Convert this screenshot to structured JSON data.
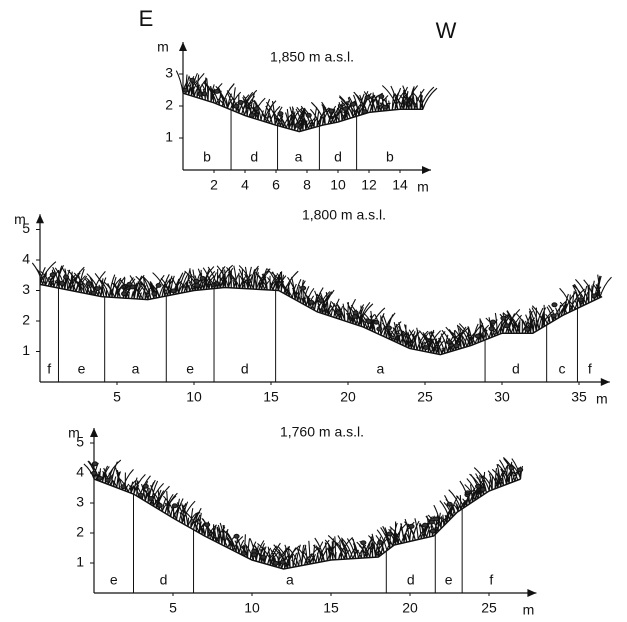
{
  "left_label": "E",
  "right_label": "W",
  "panels": [
    {
      "title": "1,850 m a.s.l.",
      "y_label": "m",
      "x_label": "m",
      "xlim": [
        0,
        16
      ],
      "ylim": [
        0,
        4
      ],
      "xticks": [
        2,
        4,
        6,
        8,
        10,
        12,
        14
      ],
      "yticks": [
        1,
        2,
        3
      ],
      "zones": [
        {
          "label": "b",
          "start": 0,
          "end": 3.1
        },
        {
          "label": "d",
          "start": 3.1,
          "end": 6.1
        },
        {
          "label": "a",
          "start": 6.1,
          "end": 8.8
        },
        {
          "label": "d",
          "start": 8.8,
          "end": 11.2
        },
        {
          "label": "b",
          "start": 11.2,
          "end": 15.5
        }
      ],
      "ground_x": [
        0,
        2,
        4,
        6,
        7.5,
        9,
        10,
        12,
        14,
        15.5
      ],
      "ground_y": [
        2.4,
        2.1,
        1.7,
        1.4,
        1.2,
        1.4,
        1.5,
        1.8,
        1.9,
        1.9
      ]
    },
    {
      "title": "1,800 m a.s.l.",
      "y_label": "m",
      "x_label": "m",
      "xlim": [
        0,
        37
      ],
      "ylim": [
        0,
        5.5
      ],
      "xticks": [
        5,
        10,
        15,
        20,
        25,
        30,
        35
      ],
      "yticks": [
        1,
        2,
        3,
        4,
        5
      ],
      "zones": [
        {
          "label": "f",
          "start": 0,
          "end": 1.2
        },
        {
          "label": "e",
          "start": 1.2,
          "end": 4.2
        },
        {
          "label": "a",
          "start": 4.2,
          "end": 8.2
        },
        {
          "label": "e",
          "start": 8.2,
          "end": 11.3
        },
        {
          "label": "d",
          "start": 11.3,
          "end": 15.3
        },
        {
          "label": "a",
          "start": 15.3,
          "end": 28.9
        },
        {
          "label": "d",
          "start": 28.9,
          "end": 32.9
        },
        {
          "label": "c",
          "start": 32.9,
          "end": 34.9
        },
        {
          "label": "f",
          "start": 34.9,
          "end": 36.5
        }
      ],
      "ground_x": [
        0,
        4,
        7,
        10,
        12,
        15.5,
        18,
        21,
        24,
        26,
        28,
        30,
        32,
        34,
        36.5
      ],
      "ground_y": [
        3.2,
        2.8,
        2.7,
        3.0,
        3.1,
        3.0,
        2.3,
        1.8,
        1.1,
        0.9,
        1.2,
        1.6,
        1.6,
        2.2,
        2.8
      ]
    },
    {
      "title": "1,760 m a.s.l.",
      "y_label": "m",
      "x_label": "m",
      "xlim": [
        0,
        28
      ],
      "ylim": [
        0,
        5.5
      ],
      "xticks": [
        5,
        10,
        15,
        20,
        25
      ],
      "yticks": [
        1,
        2,
        3,
        4,
        5
      ],
      "zones": [
        {
          "label": "e",
          "start": 0,
          "end": 2.5
        },
        {
          "label": "d",
          "start": 2.5,
          "end": 6.3
        },
        {
          "label": "a",
          "start": 6.3,
          "end": 18.5
        },
        {
          "label": "d",
          "start": 18.5,
          "end": 21.6
        },
        {
          "label": "e",
          "start": 21.6,
          "end": 23.3
        },
        {
          "label": "f",
          "start": 23.3,
          "end": 27
        }
      ],
      "ground_x": [
        0,
        2.5,
        5,
        7,
        10,
        12,
        15,
        18,
        19,
        21.5,
        23,
        25,
        27
      ],
      "ground_y": [
        3.8,
        3.3,
        2.5,
        1.9,
        1.1,
        0.8,
        1.1,
        1.2,
        1.6,
        1.9,
        2.7,
        3.4,
        3.8
      ]
    }
  ]
}
